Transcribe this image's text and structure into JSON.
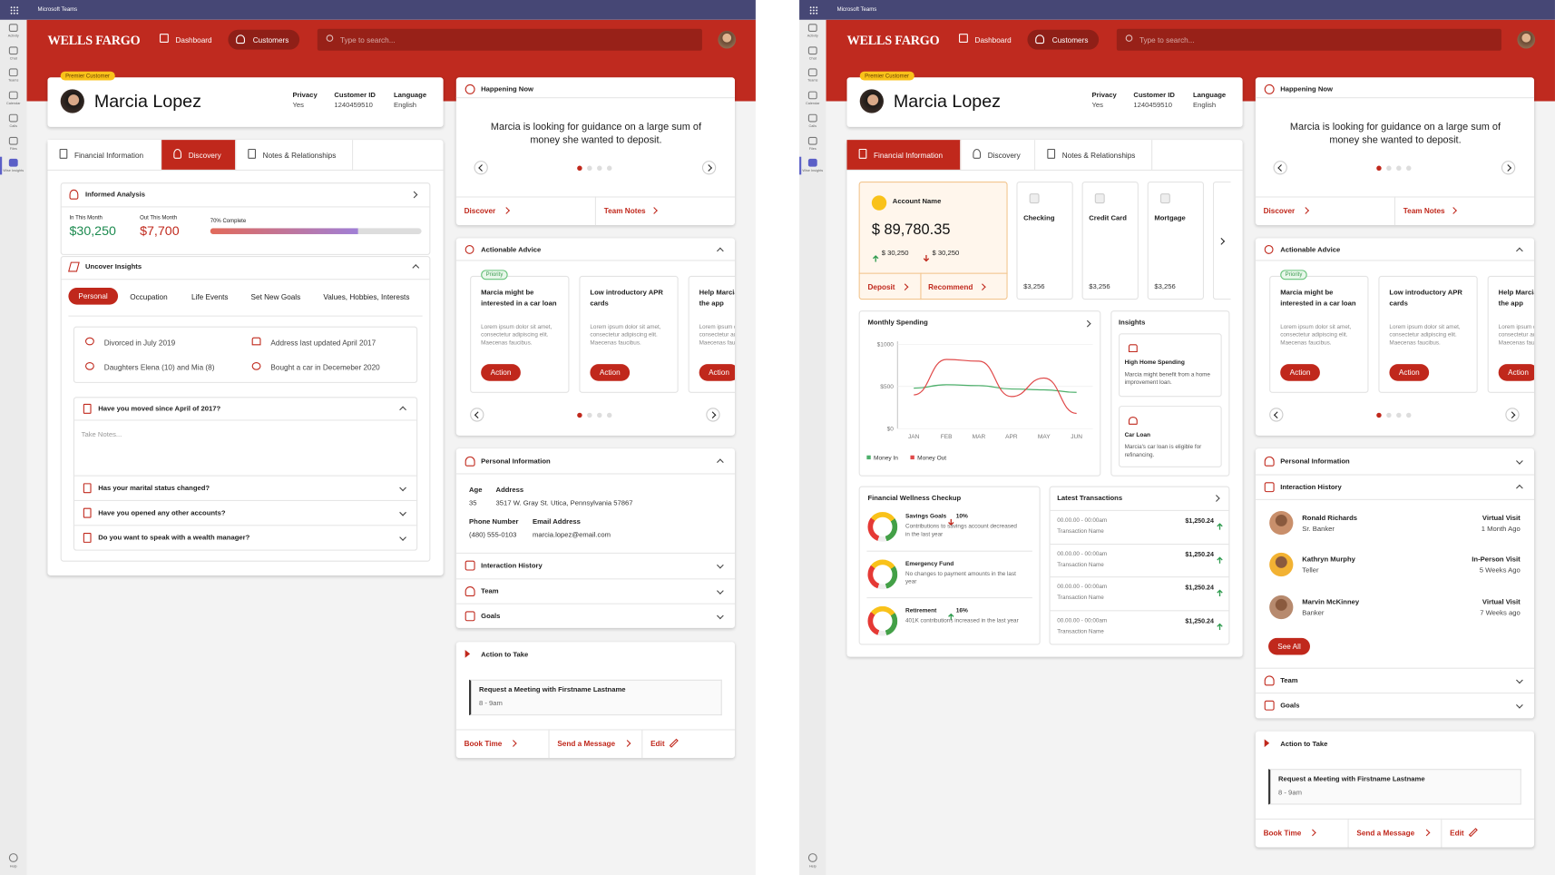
{
  "teams": {
    "title": "Microsoft Teams",
    "apps": [
      "Activity",
      "Chat",
      "Teams",
      "Calendar",
      "Calls",
      "Files",
      "Wise Insights"
    ],
    "help": "Help"
  },
  "header": {
    "brand": "WELLS FARGO",
    "nav": [
      "Dashboard",
      "Customers"
    ],
    "search": "Type to search..."
  },
  "customer": {
    "badge": "Premier Customer",
    "name": "Marcia Lopez",
    "fields": [
      {
        "label": "Privacy",
        "value": "Yes"
      },
      {
        "label": "Customer ID",
        "value": "1240459510"
      },
      {
        "label": "Language",
        "value": "English"
      }
    ]
  },
  "tabs": [
    "Financial Information",
    "Discovery",
    "Notes & Relationships"
  ],
  "discovery": {
    "informed": {
      "title": "Informed Analysis",
      "in_label": "In This Month",
      "in_value": "$30,250",
      "out_label": "Out This Month",
      "out_value": "$7,700",
      "progress": 70,
      "progress_label": "70% Complete"
    },
    "uncover": {
      "title": "Uncover Insights",
      "tabs": [
        "Personal",
        "Occupation",
        "Life Events",
        "Set New Goals",
        "Values, Hobbies, Interests"
      ],
      "facts": [
        "Divorced in July 2019",
        "Address last updated April 2017",
        "Daughters Elena (10) and Mia (8)",
        "Bought a car in Decemeber 2020"
      ],
      "notes_placeholder": "Take Notes...",
      "questions": [
        "Have you moved since April of 2017?",
        "Has your marital status changed?",
        "Have you opened any other accounts?",
        "Do you want to speak with a wealth manager?"
      ]
    }
  },
  "financial": {
    "account": {
      "title": "Account Name",
      "balance": "$ 89,780.35",
      "in": "$ 30,250",
      "out": "$ 30,250",
      "links": [
        "Deposit",
        "Recommend"
      ]
    },
    "accounts": [
      {
        "name": "Checking",
        "amount": "$3,256"
      },
      {
        "name": "Credit Card",
        "amount": "$3,256"
      },
      {
        "name": "Mortgage",
        "amount": "$3,256"
      }
    ],
    "monthly_spending": {
      "type": "line",
      "title": "Monthly Spending",
      "categories": [
        "JAN",
        "FEB",
        "MAR",
        "APR",
        "MAY",
        "JUN"
      ],
      "series": [
        {
          "name": "Money In",
          "color": "#4caf6a",
          "values": [
            480,
            520,
            510,
            470,
            460,
            430
          ]
        },
        {
          "name": "Money Out",
          "color": "#e04a4a",
          "values": [
            400,
            820,
            800,
            380,
            600,
            180
          ]
        }
      ],
      "ylim": [
        0,
        1000
      ],
      "yticks": [
        {
          "value": 0,
          "label": "$0"
        },
        {
          "value": 500,
          "label": "$500"
        },
        {
          "value": 1000,
          "label": "$1000"
        }
      ],
      "grid": true
    },
    "insights": {
      "title": "Insights",
      "items": [
        {
          "title": "High Home Spending",
          "text": "Marcia might benefit from a home improvement loan."
        },
        {
          "title": "Car Loan",
          "text": "Marcia's car loan is eligible for refinancing."
        }
      ]
    },
    "wellness": {
      "title": "Financial Wellness Checkup",
      "items": [
        {
          "title": "Savings Goals",
          "pct": "10%",
          "dir": "down",
          "text": "Contributions to savings account decreased in the last year"
        },
        {
          "title": "Emergency Fund",
          "text": "No changes to payment amounts in the last year"
        },
        {
          "title": "Retirement",
          "pct": "16%",
          "dir": "up",
          "text": "401K contributions increased in the last year"
        }
      ]
    },
    "transactions": {
      "title": "Latest Transactions",
      "items": [
        {
          "time": "00.00.00 - 00:00am",
          "name": "Transaction Name",
          "amount": "$1,250.24"
        },
        {
          "time": "00.00.00 - 00:00am",
          "name": "Transaction Name",
          "amount": "$1,250.24"
        },
        {
          "time": "00.00.00 - 00:00am",
          "name": "Transaction Name",
          "amount": "$1,250.24"
        },
        {
          "time": "00.00.00 - 00:00am",
          "name": "Transaction Name",
          "amount": "$1,250.24"
        }
      ]
    }
  },
  "happening": {
    "title": "Happening Now",
    "text": "Marcia is looking for guidance on a large sum of money she wanted to deposit.",
    "links": [
      "Discover",
      "Team Notes"
    ]
  },
  "advice": {
    "title": "Actionable Advice",
    "priority": "Priority",
    "cards": [
      {
        "title": "Marcia might be interested in a car loan",
        "body": "Lorem ipsum dolor sit amet, consectetur adipiscing elit. Maecenas faucibus.",
        "button": "Action"
      },
      {
        "title": "Low introductory APR cards",
        "body": "Lorem ipsum dolor sit amet, consectetur adipiscing elit. Maecenas faucibus.",
        "button": "Action"
      },
      {
        "title": "Help Marcia download the app",
        "body": "Lorem ipsum dolor sit amet, consectetur adipiscing elit. Maecenas faucibus.",
        "button": "Action"
      }
    ]
  },
  "personal": {
    "title": "Personal Information",
    "fields": [
      {
        "label": "Age",
        "value": "35"
      },
      {
        "label": "Address",
        "value": "3517 W. Gray St. Utica, Pennsylvania 57867"
      },
      {
        "label": "Phone Number",
        "value": "(480) 555-0103"
      },
      {
        "label": "Email Address",
        "value": "marcia.lopez@email.com"
      }
    ]
  },
  "interaction_history": {
    "title": "Interaction History",
    "people": [
      {
        "name": "Ronald Richards",
        "role": "Sr. Banker",
        "type": "Virtual Visit",
        "when": "1 Month Ago"
      },
      {
        "name": "Kathryn Murphy",
        "role": "Teller",
        "type": "In-Person Visit",
        "when": "5 Weeks Ago"
      },
      {
        "name": "Marvin McKinney",
        "role": "Banker",
        "type": "Virtual Visit",
        "when": "7 Weeks ago"
      }
    ],
    "see_all": "See All"
  },
  "team": "Team",
  "goals": "Goals",
  "action": {
    "title": "Action to Take",
    "meeting": "Request a Meeting with Firstname Lastname",
    "time": "8 - 9am",
    "links": [
      "Book Time",
      "Send a Message",
      "Edit"
    ]
  }
}
